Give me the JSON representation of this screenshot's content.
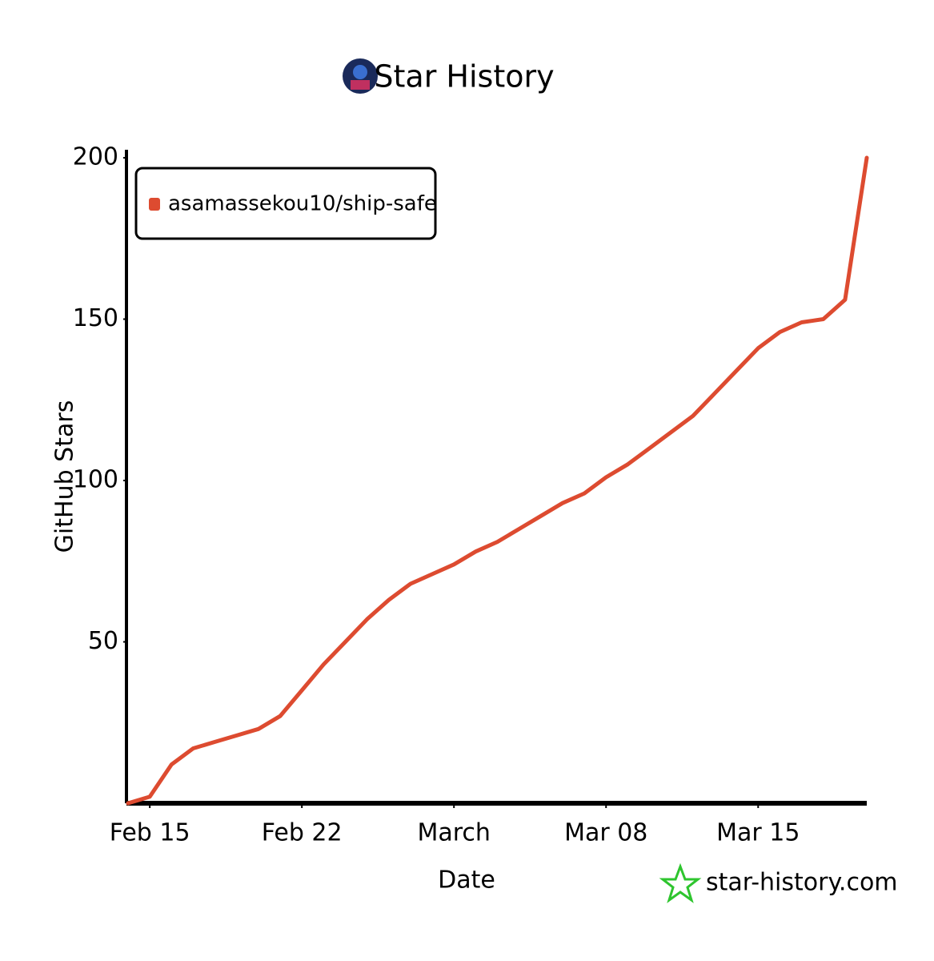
{
  "chart_data": {
    "type": "line",
    "title": "Star History",
    "y_label": "GitHub Stars",
    "x_label": "Date",
    "watermark": "star-history.com",
    "x": [
      "Feb 14",
      "Feb 15",
      "Feb 16",
      "Feb 17",
      "Feb 18",
      "Feb 19",
      "Feb 20",
      "Feb 21",
      "Feb 22",
      "Feb 23",
      "Feb 24",
      "Feb 25",
      "Feb 26",
      "Feb 27",
      "Feb 28",
      "Mar 01",
      "Mar 02",
      "Mar 03",
      "Mar 04",
      "Mar 05",
      "Mar 06",
      "Mar 07",
      "Mar 08",
      "Mar 09",
      "Mar 10",
      "Mar 11",
      "Mar 12",
      "Mar 13",
      "Mar 14",
      "Mar 15",
      "Mar 16",
      "Mar 17",
      "Mar 18",
      "Mar 19",
      "Mar 20"
    ],
    "series": [
      {
        "name": "asamassekou10/ship-safe",
        "color": "#dd4b30",
        "values": [
          0,
          2,
          12,
          17,
          19,
          21,
          23,
          27,
          35,
          43,
          50,
          57,
          63,
          68,
          71,
          74,
          78,
          81,
          85,
          89,
          93,
          96,
          101,
          105,
          110,
          115,
          120,
          127,
          134,
          141,
          146,
          149,
          150,
          156,
          200
        ]
      }
    ],
    "xlim": [
      "Feb 14",
      "Mar 20"
    ],
    "xticks": [
      "Feb 15",
      "Feb 22",
      {
        "value": "Mar 01",
        "label": "March"
      },
      "Mar 08",
      "Mar 15"
    ],
    "ylim": [
      0,
      200
    ],
    "yticks": [
      50,
      100,
      150,
      200
    ],
    "grid": false,
    "legend": "top-left"
  }
}
